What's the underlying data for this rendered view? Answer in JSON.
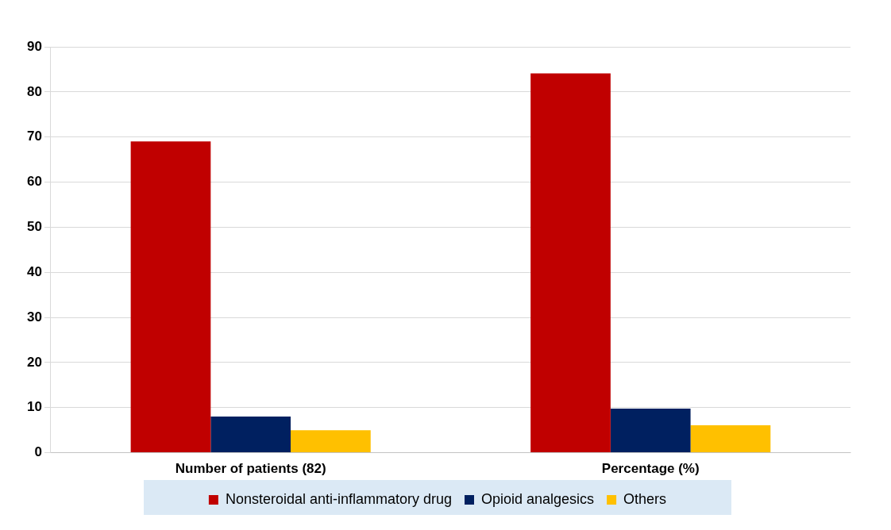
{
  "chart_data": {
    "type": "bar",
    "categories": [
      "Number of patients (82)",
      "Percentage (%)"
    ],
    "series": [
      {
        "name": "Nonsteroidal anti-inflammatory drug",
        "color": "#c00000",
        "values": [
          69,
          84.1
        ]
      },
      {
        "name": "Opioid analgesics",
        "color": "#002060",
        "values": [
          8,
          9.8
        ]
      },
      {
        "name": "Others",
        "color": "#ffc000",
        "values": [
          5,
          6.1
        ]
      }
    ],
    "ylim": [
      0,
      90
    ],
    "yticks": [
      0,
      10,
      20,
      30,
      40,
      50,
      60,
      70,
      80,
      90
    ],
    "grid": "y",
    "legend": "bottom"
  }
}
